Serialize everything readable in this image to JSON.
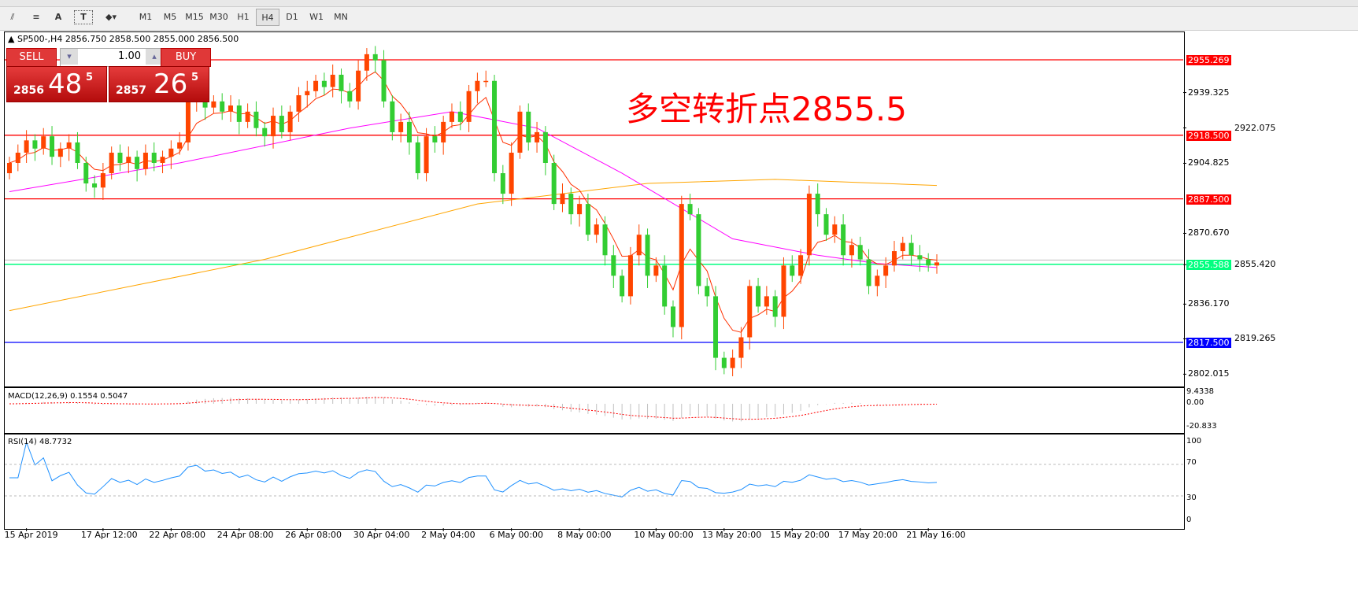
{
  "toolbar": {
    "tools": [
      "line-studies-icon",
      "fibonacci-icon",
      "text-icon",
      "text-label-icon",
      "arrows-icon"
    ],
    "text_tool": "A",
    "timeframes": [
      "M1",
      "M5",
      "M15",
      "M30",
      "H1",
      "H4",
      "D1",
      "W1",
      "MN"
    ],
    "active_timeframe": "H4"
  },
  "chart": {
    "header": "SP500-,H4  2856.750 2858.500 2855.000 2856.500",
    "annotation": "多空转折点2855.5",
    "annotation_color": "#ff0000",
    "trade_panel": {
      "sell_label": "SELL",
      "buy_label": "BUY",
      "lot": "1.00",
      "sell_prefix": "2856",
      "sell_big": "48",
      "sell_sup": "5",
      "buy_prefix": "2857",
      "buy_big": "26",
      "buy_sup": "5"
    },
    "price_ticks": [
      "2939.325",
      "2922.075",
      "2904.825",
      "2870.670",
      "2855.420",
      "2836.170",
      "2819.265",
      "2802.015"
    ],
    "horizontal_lines": [
      {
        "price": 2955.269,
        "label": "2955.269",
        "color": "#ff0000"
      },
      {
        "price": 2918.5,
        "label": "2918.500",
        "color": "#ff0000"
      },
      {
        "price": 2887.5,
        "label": "2887.500",
        "color": "#ff0000"
      },
      {
        "price": 2855.588,
        "label": "2855.588",
        "color": "#00ff7f"
      },
      {
        "price": 2817.5,
        "label": "2817.500",
        "color": "#0000ff"
      }
    ],
    "bull_color": "#ff4500",
    "bear_color": "#32cd32",
    "dates": [
      {
        "i": 2,
        "label": "15 Apr 2019"
      },
      {
        "i": 11,
        "label": "17 Apr 12:00"
      },
      {
        "i": 19,
        "label": "22 Apr 08:00"
      },
      {
        "i": 27,
        "label": "24 Apr 08:00"
      },
      {
        "i": 35,
        "label": "26 Apr 08:00"
      },
      {
        "i": 43,
        "label": "30 Apr 04:00"
      },
      {
        "i": 51,
        "label": "2 May 04:00"
      },
      {
        "i": 59,
        "label": "6 May 00:00"
      },
      {
        "i": 67,
        "label": "8 May 00:00"
      },
      {
        "i": 76,
        "label": "10 May 00:00"
      },
      {
        "i": 84,
        "label": "13 May 20:00"
      },
      {
        "i": 92,
        "label": "15 May 20:00"
      },
      {
        "i": 100,
        "label": "17 May 20:00"
      },
      {
        "i": 108,
        "label": "21 May 16:00"
      }
    ]
  },
  "chart_data": {
    "type": "candlestick",
    "symbol": "SP500-",
    "timeframe": "H4",
    "ylim": [
      2795,
      2962
    ],
    "close": [
      2905,
      2910,
      2916,
      2912,
      2918,
      2908,
      2912,
      2915,
      2905,
      2895,
      2893,
      2900,
      2910,
      2905,
      2908,
      2902,
      2910,
      2905,
      2908,
      2912,
      2915,
      2935,
      2940,
      2932,
      2935,
      2930,
      2933,
      2925,
      2930,
      2922,
      2918,
      2928,
      2920,
      2930,
      2938,
      2940,
      2945,
      2942,
      2948,
      2940,
      2935,
      2950,
      2958,
      2955,
      2935,
      2920,
      2925,
      2915,
      2900,
      2918,
      2915,
      2925,
      2930,
      2925,
      2940,
      2945,
      2945,
      2900,
      2890,
      2910,
      2930,
      2915,
      2920,
      2905,
      2885,
      2890,
      2880,
      2885,
      2870,
      2875,
      2860,
      2850,
      2840,
      2860,
      2870,
      2850,
      2855,
      2835,
      2825,
      2885,
      2880,
      2845,
      2840,
      2810,
      2805,
      2810,
      2820,
      2845,
      2835,
      2840,
      2830,
      2855,
      2850,
      2860,
      2890,
      2880,
      2870,
      2875,
      2860,
      2865,
      2858,
      2845,
      2850,
      2855,
      2862,
      2866,
      2860,
      2858,
      2855,
      2856.5
    ],
    "ma_slow": {
      "color": "#ffa500",
      "points": [
        [
          0,
          2833
        ],
        [
          30,
          2858
        ],
        [
          55,
          2885
        ],
        [
          75,
          2895
        ],
        [
          90,
          2897
        ],
        [
          109,
          2894
        ]
      ]
    },
    "ma_mid": {
      "color": "#ff00ff",
      "points": [
        [
          0,
          2891
        ],
        [
          20,
          2905
        ],
        [
          40,
          2922
        ],
        [
          52,
          2930
        ],
        [
          62,
          2922
        ],
        [
          72,
          2900
        ],
        [
          85,
          2868
        ],
        [
          95,
          2860
        ],
        [
          102,
          2856
        ],
        [
          109,
          2854
        ]
      ]
    },
    "ma_fast_color": "#ff3000",
    "macd": {
      "label": "MACD(12,26,9) 0.1554 0.5047",
      "ticks": [
        "9.4338",
        "0.00",
        "-20.833"
      ],
      "ylim": [
        -20.833,
        9.4338
      ]
    },
    "rsi": {
      "label": "RSI(14) 48.7732",
      "ticks": [
        "100",
        "70",
        "30",
        "0"
      ],
      "levels": [
        70,
        30
      ],
      "value": 48.7732,
      "color": "#1e90ff"
    }
  }
}
